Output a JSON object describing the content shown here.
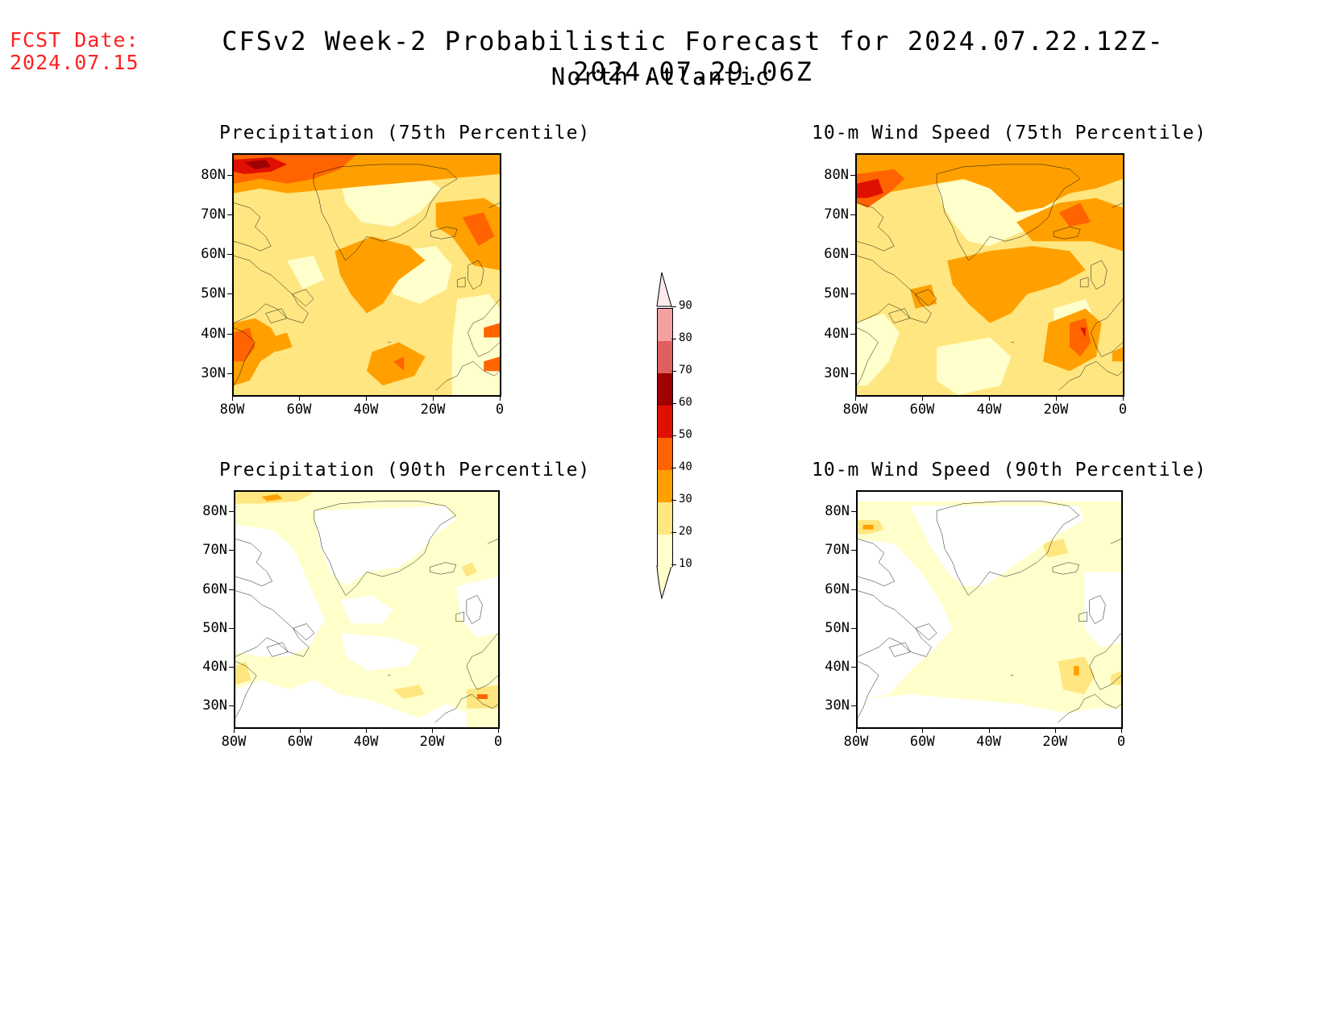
{
  "header": {
    "fcst_label": "FCST Date:",
    "fcst_date": "2024.07.15",
    "title": "CFSv2 Week-2 Probabilistic Forecast for 2024.07.22.12Z-2024.07.29.06Z",
    "subtitle": "North Atlantic"
  },
  "panels": [
    {
      "title": "Precipitation (75th Percentile)"
    },
    {
      "title": "10-m Wind Speed (75th Percentile)"
    },
    {
      "title": "Precipitation (90th Percentile)"
    },
    {
      "title": "10-m Wind Speed (90th Percentile)"
    }
  ],
  "axes": {
    "lat_labels": [
      "80N",
      "70N",
      "60N",
      "50N",
      "40N",
      "30N"
    ],
    "lon_labels": [
      "80W",
      "60W",
      "40W",
      "20W",
      "0"
    ]
  },
  "colorbar": {
    "levels": [
      "90",
      "80",
      "70",
      "60",
      "50",
      "40",
      "30",
      "20",
      "10"
    ],
    "colors": [
      "#ffffcc",
      "#ffe680",
      "#ffa000",
      "#ff6400",
      "#e01000",
      "#a00000",
      "#e06060",
      "#f4a0a0",
      "#ffe4e4"
    ]
  },
  "map_colors": {
    "c10": "#ffffcc",
    "c20": "#ffe680",
    "c30": "#ffa000",
    "c40": "#ff6400",
    "c50": "#e01000",
    "c60": "#a00000"
  }
}
